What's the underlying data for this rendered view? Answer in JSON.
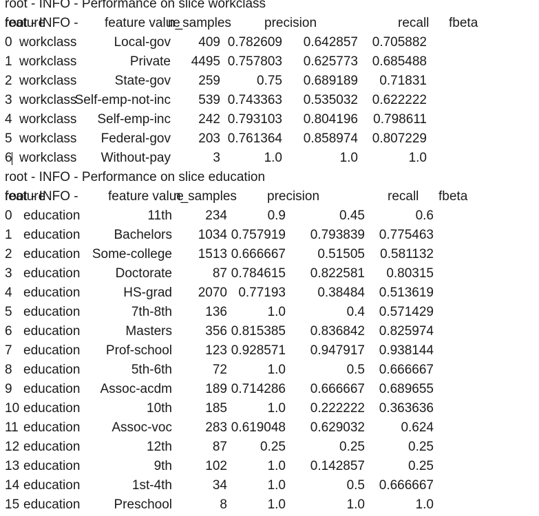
{
  "workclass_section": {
    "title": "root - INFO - Performance on slice workclass",
    "header": {
      "prefix": "root - INFO -",
      "columns": [
        "feature",
        "feature value",
        "n_samples",
        "precision",
        "recall",
        "fbeta"
      ]
    },
    "rows": [
      {
        "index": "0",
        "feature": "workclass",
        "value": "Local-gov",
        "n_samples": "409",
        "precision": "0.782609",
        "recall": "0.642857",
        "fbeta": "0.705882"
      },
      {
        "index": "1",
        "feature": "workclass",
        "value": "Private",
        "n_samples": "4495",
        "precision": "0.757803",
        "recall": "0.625773",
        "fbeta": "0.685488"
      },
      {
        "index": "2",
        "feature": "workclass",
        "value": "State-gov",
        "n_samples": "259",
        "precision": "0.75",
        "recall": "0.689189",
        "fbeta": "0.71831"
      },
      {
        "index": "3",
        "feature": "workclass",
        "value": "Self-emp-not-inc",
        "n_samples": "539",
        "precision": "0.743363",
        "recall": "0.535032",
        "fbeta": "0.622222"
      },
      {
        "index": "4",
        "feature": "workclass",
        "value": "Self-emp-inc",
        "n_samples": "242",
        "precision": "0.793103",
        "recall": "0.804196",
        "fbeta": "0.798611"
      },
      {
        "index": "5",
        "feature": "workclass",
        "value": "Federal-gov",
        "n_samples": "203",
        "precision": "0.761364",
        "recall": "0.858974",
        "fbeta": "0.807229"
      },
      {
        "index": "6",
        "feature": "workclass",
        "value": "Without-pay",
        "n_samples": "3",
        "precision": "1.0",
        "recall": "1.0",
        "fbeta": "1.0"
      }
    ]
  },
  "education_section": {
    "title": "root - INFO - Performance on slice education",
    "header": {
      "prefix": "root - INFO -",
      "columns": [
        "feature",
        "feature value",
        "n_samples",
        "precision",
        "recall",
        "fbeta"
      ]
    },
    "rows": [
      {
        "index": "0",
        "feature": "education",
        "value": "11th",
        "n_samples": "234",
        "precision": "0.9",
        "recall": "0.45",
        "fbeta": "0.6"
      },
      {
        "index": "1",
        "feature": "education",
        "value": "Bachelors",
        "n_samples": "1034",
        "precision": "0.757919",
        "recall": "0.793839",
        "fbeta": "0.775463"
      },
      {
        "index": "2",
        "feature": "education",
        "value": "Some-college",
        "n_samples": "1513",
        "precision": "0.666667",
        "recall": "0.51505",
        "fbeta": "0.581132"
      },
      {
        "index": "3",
        "feature": "education",
        "value": "Doctorate",
        "n_samples": "87",
        "precision": "0.784615",
        "recall": "0.822581",
        "fbeta": "0.80315"
      },
      {
        "index": "4",
        "feature": "education",
        "value": "HS-grad",
        "n_samples": "2070",
        "precision": "0.77193",
        "recall": "0.38484",
        "fbeta": "0.513619"
      },
      {
        "index": "5",
        "feature": "education",
        "value": "7th-8th",
        "n_samples": "136",
        "precision": "1.0",
        "recall": "0.4",
        "fbeta": "0.571429"
      },
      {
        "index": "6",
        "feature": "education",
        "value": "Masters",
        "n_samples": "356",
        "precision": "0.815385",
        "recall": "0.836842",
        "fbeta": "0.825974"
      },
      {
        "index": "7",
        "feature": "education",
        "value": "Prof-school",
        "n_samples": "123",
        "precision": "0.928571",
        "recall": "0.947917",
        "fbeta": "0.938144"
      },
      {
        "index": "8",
        "feature": "education",
        "value": "5th-6th",
        "n_samples": "72",
        "precision": "1.0",
        "recall": "0.5",
        "fbeta": "0.666667"
      },
      {
        "index": "9",
        "feature": "education",
        "value": "Assoc-acdm",
        "n_samples": "189",
        "precision": "0.714286",
        "recall": "0.666667",
        "fbeta": "0.689655"
      },
      {
        "index": "10",
        "feature": "education",
        "value": "10th",
        "n_samples": "185",
        "precision": "1.0",
        "recall": "0.222222",
        "fbeta": "0.363636"
      },
      {
        "index": "11",
        "feature": "education",
        "value": "Assoc-voc",
        "n_samples": "283",
        "precision": "0.619048",
        "recall": "0.629032",
        "fbeta": "0.624"
      },
      {
        "index": "12",
        "feature": "education",
        "value": "12th",
        "n_samples": "87",
        "precision": "0.25",
        "recall": "0.25",
        "fbeta": "0.25"
      },
      {
        "index": "13",
        "feature": "education",
        "value": "9th",
        "n_samples": "102",
        "precision": "1.0",
        "recall": "0.142857",
        "fbeta": "0.25"
      },
      {
        "index": "14",
        "feature": "education",
        "value": "1st-4th",
        "n_samples": "34",
        "precision": "1.0",
        "recall": "0.5",
        "fbeta": "0.666667"
      },
      {
        "index": "15",
        "feature": "education",
        "value": "Preschool",
        "n_samples": "8",
        "precision": "1.0",
        "recall": "1.0",
        "fbeta": "1.0"
      }
    ]
  }
}
